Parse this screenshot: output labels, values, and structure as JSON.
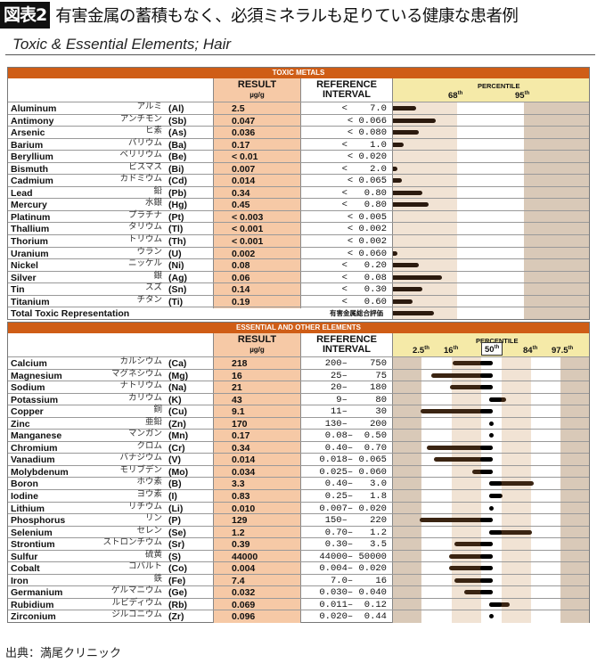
{
  "title": {
    "badge": "図表2",
    "text": "有害金属の蓄積もなく、必須ミネラルも足りている健康な患者例"
  },
  "subtitle": "Toxic & Essential Elements; Hair",
  "columns": {
    "result": "RESULT",
    "unit": "µg/g",
    "reference_1": "REFERENCE",
    "reference_2": "INTERVAL",
    "percentile": "PERCENTILE"
  },
  "toxic": {
    "section_title": "TOXIC METALS",
    "percentile_marks": [
      "68th",
      "95th"
    ],
    "rows": [
      {
        "name": "Aluminum",
        "jp": "アルミ",
        "symbol": "(Al)",
        "result": "2.5",
        "reference": "<    7.0",
        "bar_fraction": 0.12
      },
      {
        "name": "Antimony",
        "jp": "アンチモン",
        "symbol": "(Sb)",
        "result": "0.047",
        "reference": "< 0.066",
        "bar_fraction": 0.22
      },
      {
        "name": "Arsenic",
        "jp": "ヒ素",
        "symbol": "(As)",
        "result": "0.036",
        "reference": "< 0.080",
        "bar_fraction": 0.13
      },
      {
        "name": "Barium",
        "jp": "バリウム",
        "symbol": "(Ba)",
        "result": "0.17",
        "reference": "<    1.0",
        "bar_fraction": 0.055
      },
      {
        "name": "Beryllium",
        "jp": "ベリリウム",
        "symbol": "(Be)",
        "result": "< 0.01",
        "reference": "< 0.020",
        "bar_fraction": 0
      },
      {
        "name": "Bismuth",
        "jp": "ビスマス",
        "symbol": "(Bi)",
        "result": "0.007",
        "reference": "<    2.0",
        "bar_fraction": 0.01
      },
      {
        "name": "Cadmium",
        "jp": "カドミウム",
        "symbol": "(Cd)",
        "result": "0.014",
        "reference": "< 0.065",
        "bar_fraction": 0.045
      },
      {
        "name": "Lead",
        "jp": "鉛",
        "symbol": "(Pb)",
        "result": "0.34",
        "reference": "<   0.80",
        "bar_fraction": 0.15
      },
      {
        "name": "Mercury",
        "jp": "水銀",
        "symbol": "(Hg)",
        "result": "0.45",
        "reference": "<   0.80",
        "bar_fraction": 0.18
      },
      {
        "name": "Platinum",
        "jp": "プラチナ",
        "symbol": "(Pt)",
        "result": "< 0.003",
        "reference": "< 0.005",
        "bar_fraction": 0
      },
      {
        "name": "Thallium",
        "jp": "タリウム",
        "symbol": "(Tl)",
        "result": "< 0.001",
        "reference": "< 0.002",
        "bar_fraction": 0
      },
      {
        "name": "Thorium",
        "jp": "トリウム",
        "symbol": "(Th)",
        "result": "< 0.001",
        "reference": "< 0.002",
        "bar_fraction": 0
      },
      {
        "name": "Uranium",
        "jp": "ウラン",
        "symbol": "(U)",
        "result": "0.002",
        "reference": "< 0.060",
        "bar_fraction": 0.01
      },
      {
        "name": "Nickel",
        "jp": "ニッケル",
        "symbol": "(Ni)",
        "result": "0.08",
        "reference": "<   0.20",
        "bar_fraction": 0.13
      },
      {
        "name": "Silver",
        "jp": "銀",
        "symbol": "(Ag)",
        "result": "0.06",
        "reference": "<   0.08",
        "bar_fraction": 0.25
      },
      {
        "name": "Tin",
        "jp": "スズ",
        "symbol": "(Sn)",
        "result": "0.14",
        "reference": "<   0.30",
        "bar_fraction": 0.15
      },
      {
        "name": "Titanium",
        "jp": "チタン",
        "symbol": "(Ti)",
        "result": "0.19",
        "reference": "<   0.60",
        "bar_fraction": 0.1
      }
    ],
    "total": {
      "name": "Total Toxic Representation",
      "jp": "有害金属総合評価",
      "bar_fraction": 0.21
    }
  },
  "essential": {
    "section_title": "ESSENTIAL AND OTHER ELEMENTS",
    "percentile_marks": [
      "2.5th",
      "16th",
      "50th",
      "84th",
      "97.5th"
    ],
    "rows": [
      {
        "name": "Calcium",
        "jp": "カルシウム",
        "symbol": "(Ca)",
        "result": "218",
        "reference": "200–    750",
        "z": -1.24
      },
      {
        "name": "Magnesium",
        "jp": "マグネシウム",
        "symbol": "(Mg)",
        "result": "16",
        "reference": "25–     75",
        "z": -1.97
      },
      {
        "name": "Sodium",
        "jp": "ナトリウム",
        "symbol": "(Na)",
        "result": "21",
        "reference": "20–    180",
        "z": -1.33
      },
      {
        "name": "Potassium",
        "jp": "カリウム",
        "symbol": "(K)",
        "result": "43",
        "reference": "9–     80",
        "z": 0.45
      },
      {
        "name": "Copper",
        "jp": "銅",
        "symbol": "(Cu)",
        "result": "9.1",
        "reference": "11–     30",
        "z": -2.33
      },
      {
        "name": "Zinc",
        "jp": "亜鉛",
        "symbol": "(Zn)",
        "result": "170",
        "reference": "130–    200",
        "z": 0
      },
      {
        "name": "Manganese",
        "jp": "マンガン",
        "symbol": "(Mn)",
        "result": "0.17",
        "reference": "0.08–  0.50",
        "z": 0
      },
      {
        "name": "Chromium",
        "jp": "クロム",
        "symbol": "(Cr)",
        "result": "0.34",
        "reference": "0.40–  0.70",
        "z": -2.12
      },
      {
        "name": "Vanadium",
        "jp": "バナジウム",
        "symbol": "(V)",
        "result": "0.014",
        "reference": "0.018– 0.065",
        "z": -1.88
      },
      {
        "name": "Molybdenum",
        "jp": "モリブデン",
        "symbol": "(Mo)",
        "result": "0.034",
        "reference": "0.025– 0.060",
        "z": -0.58
      },
      {
        "name": "Boron",
        "jp": "ホウ素",
        "symbol": "(B)",
        "result": "3.3",
        "reference": "0.40–   3.0",
        "z": 1.39
      },
      {
        "name": "Iodine",
        "jp": "ヨウ素",
        "symbol": "(I)",
        "result": "0.83",
        "reference": "0.25–   1.8",
        "z": 0.33
      },
      {
        "name": "Lithium",
        "jp": "リチウム",
        "symbol": "(Li)",
        "result": "0.010",
        "reference": "0.007– 0.020",
        "z": 0
      },
      {
        "name": "Phosphorus",
        "jp": "リン",
        "symbol": "(P)",
        "result": "129",
        "reference": "150–    220",
        "z": -2.36
      },
      {
        "name": "Selenium",
        "jp": "セレン",
        "symbol": "(Se)",
        "result": "1.2",
        "reference": "0.70–   1.2",
        "z": 1.33
      },
      {
        "name": "Strontium",
        "jp": "ストロンチウム",
        "symbol": "(Sr)",
        "result": "0.39",
        "reference": "0.30–   3.5",
        "z": -1.18
      },
      {
        "name": "Sulfur",
        "jp": "硫黄",
        "symbol": "(S)",
        "result": "44000",
        "reference": "44000– 50000",
        "z": -1.36
      },
      {
        "name": "Cobalt",
        "jp": "コバルト",
        "symbol": "(Co)",
        "result": "0.004",
        "reference": "0.004– 0.020",
        "z": -1.36
      },
      {
        "name": "Iron",
        "jp": "鉄",
        "symbol": "(Fe)",
        "result": "7.4",
        "reference": "7.0–    16",
        "z": -1.18
      },
      {
        "name": "Germanium",
        "jp": "ゲルマニウム",
        "symbol": "(Ge)",
        "result": "0.032",
        "reference": "0.030– 0.040",
        "z": -0.85
      },
      {
        "name": "Rubidium",
        "jp": "ルビディウム",
        "symbol": "(Rb)",
        "result": "0.069",
        "reference": "0.011–  0.12",
        "z": 0.58
      },
      {
        "name": "Zirconium",
        "jp": "ジルコニウム",
        "symbol": "(Zr)",
        "result": "0.096",
        "reference": "0.020–  0.44",
        "z": 0
      }
    ]
  },
  "source": "出典：満尾クリニック",
  "colors": {
    "section_header": "#cf5d16",
    "result_column": "#f6c9a6",
    "percentile_header": "#f5eaa8",
    "bar": "#2b1a0e"
  }
}
